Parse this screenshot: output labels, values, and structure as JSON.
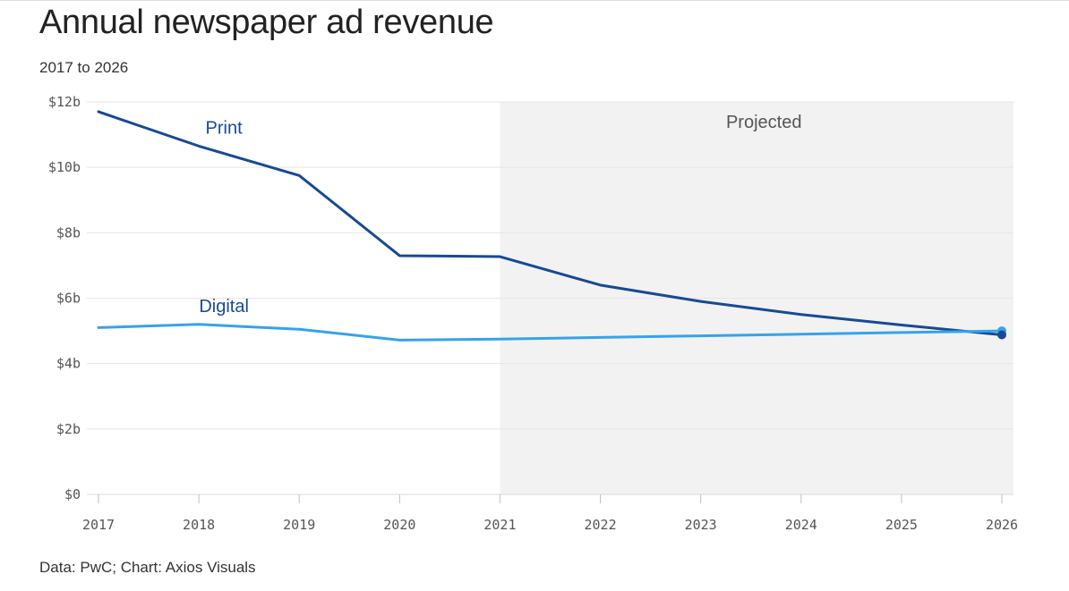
{
  "header": {
    "title": "Annual newspaper ad revenue",
    "subtitle": "2017 to 2026"
  },
  "footer": {
    "source": "Data: PwC; Chart: Axios Visuals"
  },
  "chart_data": {
    "type": "line",
    "x": [
      2017,
      2018,
      2019,
      2020,
      2021,
      2022,
      2023,
      2024,
      2025,
      2026
    ],
    "x_tick_labels": [
      "2017",
      "2018",
      "2019",
      "2020",
      "2021",
      "2022",
      "2023",
      "2024",
      "2025",
      "2026"
    ],
    "ylim": [
      0,
      12
    ],
    "y_ticks": [
      0,
      2,
      4,
      6,
      8,
      10,
      12
    ],
    "y_tick_labels": [
      "$0",
      "$2b",
      "$4b",
      "$6b",
      "$8b",
      "$10b",
      "$12b"
    ],
    "grid": true,
    "projected_region": {
      "label": "Projected",
      "x_start": 2021,
      "x_end": 2026
    },
    "series": [
      {
        "name": "Print",
        "color": "#174a93",
        "values": [
          11.7,
          10.65,
          9.75,
          7.3,
          7.27,
          6.4,
          5.9,
          5.5,
          5.18,
          4.88
        ]
      },
      {
        "name": "Digital",
        "color": "#35a3ec",
        "values": [
          5.1,
          5.2,
          5.05,
          4.72,
          4.75,
          4.8,
          4.85,
          4.9,
          4.95,
          5.0
        ]
      }
    ]
  }
}
